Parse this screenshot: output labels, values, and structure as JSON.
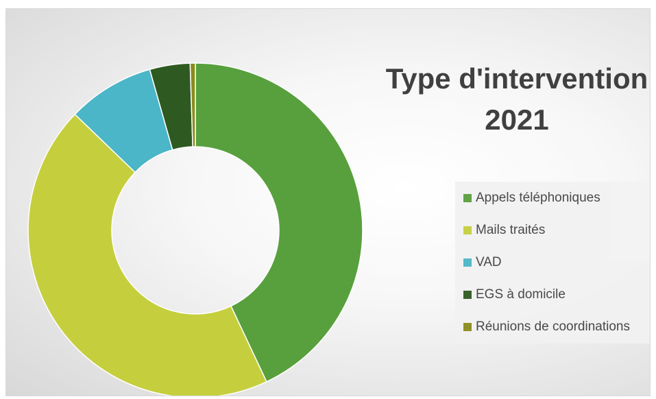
{
  "chart_data": {
    "type": "pie",
    "title_lines": [
      "Type d'intervention",
      "2021"
    ],
    "legend_placement": "right",
    "series": [
      {
        "name": "Appels téléphoniques",
        "value": 43.0,
        "color": "#58a03d"
      },
      {
        "name": "Mails traités",
        "value": 44.2,
        "color": "#c5cf3e"
      },
      {
        "name": "VAD",
        "value": 8.4,
        "color": "#4bb6c7"
      },
      {
        "name": "EGS à domicile",
        "value": 3.9,
        "color": "#2e5a21"
      },
      {
        "name": "Réunions de coordinations",
        "value": 0.5,
        "color": "#8a8c1c"
      }
    ]
  }
}
